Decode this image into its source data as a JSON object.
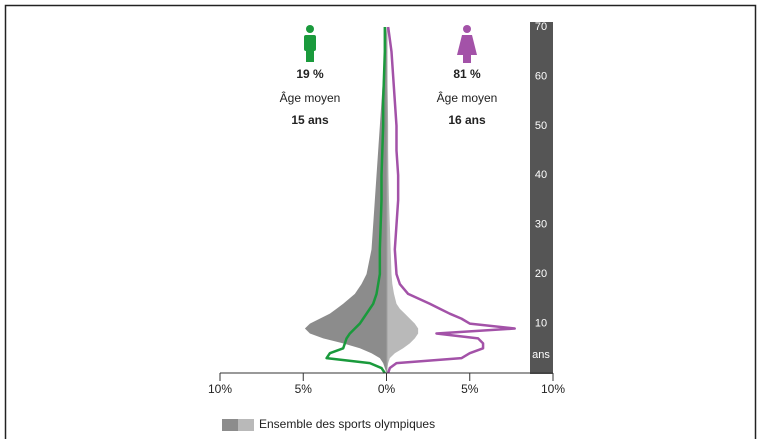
{
  "chart_data": {
    "type": "pyramid",
    "ages": [
      0,
      1,
      2,
      3,
      4,
      5,
      6,
      7,
      8,
      9,
      10,
      11,
      12,
      13,
      14,
      16,
      18,
      20,
      25,
      30,
      35,
      40,
      45,
      50,
      55,
      60,
      65,
      70
    ],
    "areas": {
      "name": "Ensemble des sports olympiques",
      "colors": [
        "#8c8c8c",
        "#b9b9b9"
      ],
      "left": [
        0,
        0.1,
        0.2,
        0.4,
        0.9,
        1.6,
        2.6,
        3.8,
        4.6,
        4.9,
        4.6,
        4.0,
        3.4,
        3.0,
        2.6,
        1.9,
        1.5,
        1.2,
        0.9,
        0.8,
        0.7,
        0.6,
        0.5,
        0.4,
        0.3,
        0.2,
        0.1,
        0
      ],
      "right": [
        0,
        0.05,
        0.1,
        0.2,
        0.5,
        1.0,
        1.4,
        1.7,
        1.9,
        1.9,
        1.7,
        1.4,
        1.1,
        0.8,
        0.6,
        0.45,
        0.35,
        0.3,
        0.25,
        0.2,
        0.15,
        0.12,
        0.1,
        0.1,
        0.08,
        0.05,
        0.03,
        0
      ]
    },
    "series": [
      {
        "side": "left",
        "color": "#1a9a3c",
        "values": [
          0.1,
          0.3,
          1.0,
          3.6,
          3.4,
          2.6,
          2.5,
          2.4,
          2.2,
          1.9,
          1.6,
          1.4,
          1.2,
          1.0,
          0.8,
          0.6,
          0.5,
          0.4,
          0.4,
          0.35,
          0.3,
          0.3,
          0.25,
          0.2,
          0.2,
          0.15,
          0.1,
          0.1
        ]
      },
      {
        "side": "right",
        "color": "#a352a8",
        "values": [
          0.1,
          0.2,
          0.6,
          4.5,
          5.0,
          5.8,
          5.8,
          5.5,
          3.0,
          7.7,
          5.0,
          4.5,
          3.8,
          3.2,
          2.6,
          1.3,
          0.8,
          0.6,
          0.5,
          0.6,
          0.7,
          0.7,
          0.6,
          0.6,
          0.5,
          0.4,
          0.3,
          0.1
        ]
      }
    ],
    "groups": [
      {
        "share": "19 %",
        "label": "Âge moyen",
        "age": "15 ans",
        "color": "#1a9a3c"
      },
      {
        "share": "81 %",
        "label": "Âge moyen",
        "age": "16 ans",
        "color": "#a352a8"
      }
    ],
    "ylabel": "ans",
    "ylim": [
      0,
      70
    ],
    "yticks": [
      10,
      20,
      30,
      40,
      50,
      60,
      70
    ],
    "xlim": [
      -10,
      10
    ],
    "xticks": [
      {
        "value": -10,
        "label": "10%"
      },
      {
        "value": -5,
        "label": "5%"
      },
      {
        "value": 0,
        "label": "0%"
      },
      {
        "value": 5,
        "label": "5%"
      },
      {
        "value": 10,
        "label": "10%"
      }
    ]
  }
}
